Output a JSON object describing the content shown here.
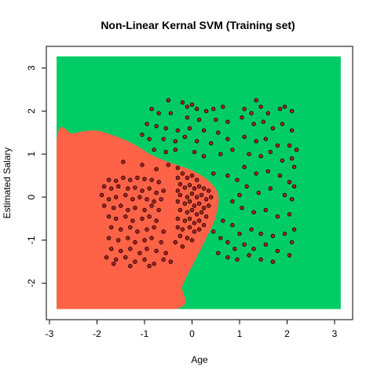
{
  "chart_data": {
    "type": "scatter",
    "title": "Non-Linear Kernal SVM (Training set)",
    "xlabel": "Age",
    "ylabel": "Estimated Salary",
    "xlim": [
      -2.9,
      3.2
    ],
    "ylim": [
      -2.85,
      3.35
    ],
    "x_ticks": [
      "-3",
      "-2",
      "-1",
      "0",
      "1",
      "2",
      "3"
    ],
    "y_ticks": [
      "-2",
      "-1",
      "0",
      "1",
      "2",
      "3"
    ],
    "grid": false,
    "legend": "none",
    "regions": {
      "class_1_color": "#00CC66",
      "class_0_color": "#FF6347",
      "x_range": [
        -2.85,
        3.13
      ],
      "y_range": [
        -2.6,
        3.27
      ],
      "class_0_boundary": [
        [
          -2.85,
          1.3
        ],
        [
          -2.5,
          1.48
        ],
        [
          -2.05,
          1.55
        ],
        [
          -1.7,
          1.45
        ],
        [
          -1.35,
          1.3
        ],
        [
          -1.1,
          1.15
        ],
        [
          -0.8,
          0.95
        ],
        [
          -0.4,
          0.78
        ],
        [
          0.0,
          0.62
        ],
        [
          0.35,
          0.38
        ],
        [
          0.55,
          0.05
        ],
        [
          0.5,
          -0.45
        ],
        [
          0.3,
          -0.95
        ],
        [
          0.05,
          -1.5
        ],
        [
          -0.2,
          -2.05
        ],
        [
          -0.35,
          -2.6
        ],
        [
          -2.7,
          -2.6
        ],
        [
          -2.85,
          -2.4
        ]
      ]
    },
    "point_fill": "#B22222",
    "point_stroke": "#000000",
    "points": [
      [
        -0.5,
        2.25
      ],
      [
        -0.2,
        2.2
      ],
      [
        -0.1,
        2.1
      ],
      [
        0.0,
        2.15
      ],
      [
        0.1,
        2.05
      ],
      [
        0.3,
        2.0
      ],
      [
        0.45,
        2.05
      ],
      [
        0.65,
        2.1
      ],
      [
        -0.85,
        2.05
      ],
      [
        -0.7,
        1.95
      ],
      [
        -0.45,
        1.95
      ],
      [
        -0.1,
        1.85
      ],
      [
        0.15,
        1.8
      ],
      [
        0.5,
        1.8
      ],
      [
        0.75,
        1.75
      ],
      [
        -0.95,
        1.7
      ],
      [
        -0.75,
        1.65
      ],
      [
        -0.55,
        1.6
      ],
      [
        -0.3,
        1.55
      ],
      [
        -0.05,
        1.6
      ],
      [
        0.25,
        1.55
      ],
      [
        0.55,
        1.5
      ],
      [
        -1.05,
        1.45
      ],
      [
        -0.9,
        1.35
      ],
      [
        -0.6,
        1.35
      ],
      [
        -0.35,
        1.3
      ],
      [
        -0.15,
        1.4
      ],
      [
        0.1,
        1.3
      ],
      [
        0.4,
        1.25
      ],
      [
        0.75,
        1.35
      ],
      [
        -0.8,
        1.1
      ],
      [
        -0.55,
        1.05
      ],
      [
        -0.35,
        1.1
      ],
      [
        0.05,
        1.05
      ],
      [
        0.25,
        0.95
      ],
      [
        0.6,
        1.0
      ],
      [
        0.85,
        1.1
      ],
      [
        -1.45,
        0.82
      ],
      [
        -1.05,
        0.75
      ],
      [
        -0.75,
        0.65
      ],
      [
        -0.5,
        0.75
      ],
      [
        -0.3,
        0.68
      ],
      [
        0.45,
        0.55
      ],
      [
        0.75,
        0.5
      ],
      [
        0.95,
        0.4
      ],
      [
        1.1,
        2.05
      ],
      [
        1.25,
        1.95
      ],
      [
        1.35,
        2.25
      ],
      [
        1.45,
        2.1
      ],
      [
        1.6,
        1.95
      ],
      [
        1.85,
        2.05
      ],
      [
        1.95,
        2.1
      ],
      [
        2.1,
        2.0
      ],
      [
        1.05,
        1.85
      ],
      [
        1.3,
        1.7
      ],
      [
        1.5,
        1.75
      ],
      [
        1.7,
        1.6
      ],
      [
        1.9,
        1.7
      ],
      [
        2.1,
        1.55
      ],
      [
        1.1,
        1.4
      ],
      [
        1.35,
        1.3
      ],
      [
        1.55,
        1.35
      ],
      [
        1.8,
        1.2
      ],
      [
        2.05,
        1.2
      ],
      [
        2.2,
        1.1
      ],
      [
        1.2,
        1.0
      ],
      [
        1.45,
        0.95
      ],
      [
        1.65,
        1.05
      ],
      [
        1.9,
        0.85
      ],
      [
        2.1,
        0.9
      ],
      [
        2.15,
        0.7
      ],
      [
        1.1,
        0.7
      ],
      [
        1.35,
        0.55
      ],
      [
        1.6,
        0.6
      ],
      [
        1.85,
        0.5
      ],
      [
        2.05,
        0.35
      ],
      [
        2.15,
        0.25
      ],
      [
        1.15,
        0.25
      ],
      [
        1.4,
        0.1
      ],
      [
        1.65,
        0.2
      ],
      [
        1.95,
        0.05
      ],
      [
        2.1,
        -0.05
      ],
      [
        1.0,
        0.05
      ],
      [
        0.85,
        -0.1
      ],
      [
        1.05,
        -0.25
      ],
      [
        1.3,
        -0.35
      ],
      [
        1.55,
        -0.3
      ],
      [
        1.8,
        -0.45
      ],
      [
        2.05,
        -0.4
      ],
      [
        0.65,
        -0.55
      ],
      [
        0.85,
        -0.65
      ],
      [
        1.0,
        -0.85
      ],
      [
        1.25,
        -0.75
      ],
      [
        1.45,
        -0.85
      ],
      [
        1.7,
        -0.9
      ],
      [
        1.95,
        -0.85
      ],
      [
        2.15,
        -0.75
      ],
      [
        0.45,
        -0.8
      ],
      [
        0.6,
        -0.95
      ],
      [
        0.75,
        -1.05
      ],
      [
        0.9,
        -1.2
      ],
      [
        1.1,
        -1.1
      ],
      [
        1.3,
        -1.2
      ],
      [
        1.55,
        -1.1
      ],
      [
        1.8,
        -1.25
      ],
      [
        2.1,
        -1.05
      ],
      [
        0.55,
        -1.3
      ],
      [
        0.75,
        -1.4
      ],
      [
        0.95,
        -1.45
      ],
      [
        1.2,
        -1.35
      ],
      [
        1.45,
        -1.45
      ],
      [
        1.7,
        -1.5
      ],
      [
        2.05,
        -1.35
      ],
      [
        -1.75,
        0.4
      ],
      [
        -1.6,
        0.38
      ],
      [
        -1.45,
        0.45
      ],
      [
        -1.3,
        0.4
      ],
      [
        -1.15,
        0.45
      ],
      [
        -1.0,
        0.42
      ],
      [
        -0.85,
        0.4
      ],
      [
        -0.7,
        0.35
      ],
      [
        -1.85,
        0.25
      ],
      [
        -1.7,
        0.2
      ],
      [
        -1.55,
        0.25
      ],
      [
        -1.35,
        0.2
      ],
      [
        -1.2,
        0.22
      ],
      [
        -1.05,
        0.15
      ],
      [
        -0.9,
        0.2
      ],
      [
        -0.75,
        0.1
      ],
      [
        -0.6,
        0.15
      ],
      [
        -1.9,
        0.05
      ],
      [
        -1.75,
        -0.05
      ],
      [
        -1.6,
        0.0
      ],
      [
        -1.4,
        0.05
      ],
      [
        -1.25,
        -0.05
      ],
      [
        -1.1,
        0.0
      ],
      [
        -0.95,
        -0.05
      ],
      [
        -0.8,
        -0.1
      ],
      [
        -0.65,
        -0.05
      ],
      [
        -1.85,
        -0.2
      ],
      [
        -1.65,
        -0.25
      ],
      [
        -1.5,
        -0.2
      ],
      [
        -1.35,
        -0.3
      ],
      [
        -1.2,
        -0.25
      ],
      [
        -1.0,
        -0.3
      ],
      [
        -0.85,
        -0.2
      ],
      [
        -0.7,
        -0.3
      ],
      [
        -1.75,
        -0.45
      ],
      [
        -1.6,
        -0.5
      ],
      [
        -1.4,
        -0.45
      ],
      [
        -1.25,
        -0.55
      ],
      [
        -1.05,
        -0.5
      ],
      [
        -0.9,
        -0.45
      ],
      [
        -0.75,
        -0.55
      ],
      [
        -1.7,
        -0.7
      ],
      [
        -1.5,
        -0.75
      ],
      [
        -1.3,
        -0.7
      ],
      [
        -1.15,
        -0.8
      ],
      [
        -0.95,
        -0.75
      ],
      [
        -0.8,
        -0.7
      ],
      [
        -0.6,
        -0.8
      ],
      [
        -1.75,
        -0.95
      ],
      [
        -1.55,
        -1.0
      ],
      [
        -1.35,
        -0.95
      ],
      [
        -1.2,
        -1.05
      ],
      [
        -1.0,
        -1.0
      ],
      [
        -0.85,
        -0.95
      ],
      [
        -0.65,
        -1.05
      ],
      [
        -1.7,
        -1.2
      ],
      [
        -1.5,
        -1.25
      ],
      [
        -1.3,
        -1.2
      ],
      [
        -1.1,
        -1.3
      ],
      [
        -0.95,
        -1.2
      ],
      [
        -0.75,
        -1.25
      ],
      [
        -0.55,
        -1.3
      ],
      [
        -1.8,
        -1.4
      ],
      [
        -1.6,
        -1.45
      ],
      [
        -1.4,
        -1.4
      ],
      [
        -1.2,
        -1.5
      ],
      [
        -1.0,
        -1.45
      ],
      [
        -0.8,
        -1.55
      ],
      [
        -0.6,
        -1.45
      ],
      [
        -0.45,
        -1.5
      ],
      [
        -1.65,
        -1.55
      ],
      [
        -1.3,
        -1.6
      ],
      [
        -0.9,
        -1.6
      ],
      [
        -0.25,
        0.3
      ],
      [
        -0.15,
        0.22
      ],
      [
        -0.05,
        0.28
      ],
      [
        0.05,
        0.2
      ],
      [
        0.15,
        0.25
      ],
      [
        0.25,
        0.2
      ],
      [
        0.35,
        0.15
      ],
      [
        -0.3,
        0.15
      ],
      [
        -0.25,
        0.05
      ],
      [
        -0.1,
        0.0
      ],
      [
        0.0,
        0.08
      ],
      [
        0.1,
        0.0
      ],
      [
        0.2,
        0.05
      ],
      [
        0.3,
        -0.05
      ],
      [
        0.4,
        0.0
      ],
      [
        -0.3,
        -0.1
      ],
      [
        -0.15,
        -0.15
      ],
      [
        -0.05,
        -0.1
      ],
      [
        0.05,
        -0.2
      ],
      [
        0.15,
        -0.15
      ],
      [
        0.25,
        -0.25
      ],
      [
        0.35,
        -0.2
      ],
      [
        -0.25,
        -0.3
      ],
      [
        -0.1,
        -0.35
      ],
      [
        0.0,
        -0.3
      ],
      [
        0.1,
        -0.4
      ],
      [
        0.2,
        -0.35
      ],
      [
        0.3,
        -0.45
      ],
      [
        -0.3,
        -0.5
      ],
      [
        -0.15,
        -0.55
      ],
      [
        -0.05,
        -0.5
      ],
      [
        0.05,
        -0.6
      ],
      [
        0.15,
        -0.55
      ],
      [
        0.25,
        -0.65
      ],
      [
        -0.3,
        -0.7
      ],
      [
        -0.2,
        -0.75
      ],
      [
        -0.05,
        -0.7
      ],
      [
        0.05,
        -0.8
      ],
      [
        0.15,
        -0.75
      ],
      [
        -0.25,
        -0.9
      ],
      [
        -0.1,
        -0.95
      ],
      [
        0.0,
        -1.0
      ],
      [
        -0.35,
        -1.05
      ],
      [
        -0.2,
        -1.15
      ],
      [
        -0.3,
        0.45
      ],
      [
        -0.2,
        0.55
      ],
      [
        -0.1,
        0.45
      ],
      [
        0.0,
        0.5
      ],
      [
        0.1,
        0.4
      ]
    ]
  }
}
